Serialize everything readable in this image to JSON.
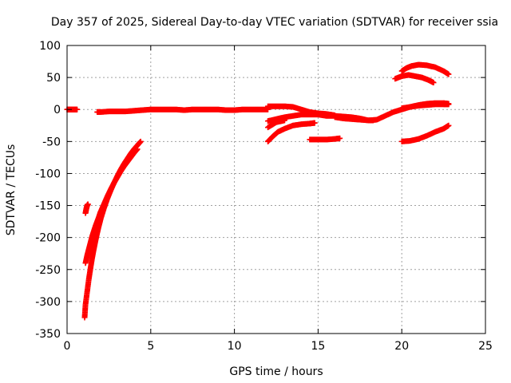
{
  "chart_data": {
    "type": "scatter",
    "title": "Day 357 of 2025, Sidereal Day-to-day VTEC variation (SDTVAR) for receiver ssia",
    "xlabel": "GPS time / hours",
    "ylabel": "SDTVAR / TECUs",
    "xlim": [
      0,
      25
    ],
    "ylim": [
      -350,
      100
    ],
    "xticks": [
      "0",
      "5",
      "10",
      "15",
      "20",
      "25"
    ],
    "yticks": [
      "100",
      "50",
      "0",
      "-50",
      "-100",
      "-150",
      "-200",
      "-250",
      "-300",
      "-350"
    ],
    "grid": true,
    "marker": "+",
    "color": "#ff0000",
    "series": [
      {
        "x": [
          0.0,
          0.2,
          0.4,
          0.6
        ],
        "y": [
          0,
          0,
          0,
          0
        ]
      },
      {
        "x": [
          1.8,
          2.0,
          2.5,
          3.0,
          3.5,
          4.0,
          4.5,
          5.0,
          5.5,
          6.0,
          6.5,
          7.0,
          7.5,
          8.0,
          8.5,
          9.0,
          9.5,
          10.0,
          10.5,
          11.0,
          11.5,
          12.0
        ],
        "y": [
          -4,
          -4,
          -3,
          -3,
          -3,
          -2,
          -1,
          0,
          0,
          0,
          0,
          -1,
          0,
          0,
          0,
          0,
          -1,
          -1,
          0,
          0,
          0,
          0
        ]
      },
      {
        "x": [
          1.1,
          1.15,
          1.2,
          1.25
        ],
        "y": [
          -162,
          -155,
          -150,
          -148
        ]
      },
      {
        "x": [
          1.05,
          1.1,
          1.2,
          1.3,
          1.4,
          1.5,
          1.6,
          1.7,
          1.8,
          1.9,
          2.0,
          2.2,
          2.4,
          2.6,
          2.8,
          3.0,
          3.2,
          3.4,
          3.6,
          3.8,
          4.0,
          4.2,
          4.4
        ],
        "y": [
          -325,
          -305,
          -285,
          -265,
          -248,
          -232,
          -218,
          -205,
          -193,
          -182,
          -172,
          -155,
          -140,
          -127,
          -115,
          -104,
          -94,
          -85,
          -77,
          -69,
          -62,
          -56,
          -50
        ]
      },
      {
        "x": [
          1.1,
          1.2,
          1.3,
          1.4,
          1.5,
          1.6,
          1.7,
          1.8,
          1.9,
          2.0,
          2.2,
          2.4,
          2.6,
          2.8,
          3.0,
          3.2,
          3.4,
          3.6,
          3.8,
          4.0,
          4.2
        ],
        "y": [
          -240,
          -228,
          -218,
          -208,
          -198,
          -190,
          -182,
          -175,
          -168,
          -160,
          -148,
          -136,
          -125,
          -115,
          -106,
          -97,
          -89,
          -82,
          -75,
          -68,
          -62
        ]
      },
      {
        "x": [
          12.0,
          12.5,
          13.0,
          13.5,
          14.0,
          14.5,
          15.0,
          15.5,
          16.0
        ],
        "y": [
          5,
          5,
          5,
          4,
          0,
          -4,
          -6,
          -7,
          -9
        ]
      },
      {
        "x": [
          12.0,
          12.5,
          13.0,
          13.5,
          14.0,
          14.5,
          15.0,
          15.5,
          16.0,
          16.5,
          17.0,
          17.5,
          18.0,
          18.5,
          19.0,
          19.5,
          20.0,
          20.5,
          21.0,
          21.5,
          22.0,
          22.5,
          22.8
        ],
        "y": [
          -18,
          -15,
          -12,
          -10,
          -8,
          -8,
          -8,
          -10,
          -10,
          -11,
          -12,
          -14,
          -17,
          -16,
          -10,
          -4,
          0,
          4,
          7,
          9,
          10,
          10,
          9
        ]
      },
      {
        "x": [
          12.0,
          12.3,
          12.6,
          13.0,
          13.5,
          14.0,
          14.5,
          14.8
        ],
        "y": [
          -50,
          -42,
          -35,
          -30,
          -25,
          -23,
          -22,
          -21
        ]
      },
      {
        "x": [
          12.0,
          12.5,
          13.0
        ],
        "y": [
          -28,
          -20,
          -17
        ]
      },
      {
        "x": [
          14.5,
          15.0,
          15.5,
          16.0,
          16.3
        ],
        "y": [
          -47,
          -47,
          -47,
          -46,
          -45
        ]
      },
      {
        "x": [
          16.0,
          16.5,
          17.0,
          17.5,
          18.0,
          18.3
        ],
        "y": [
          -12,
          -14,
          -15,
          -16,
          -17,
          -17
        ]
      },
      {
        "x": [
          19.6,
          20.0,
          20.4,
          20.8,
          21.2,
          21.6,
          21.9
        ],
        "y": [
          48,
          52,
          54,
          52,
          50,
          46,
          42
        ]
      },
      {
        "x": [
          20.0,
          20.3,
          20.6,
          21.0,
          21.5,
          22.0,
          22.5,
          22.8
        ],
        "y": [
          60,
          65,
          68,
          70,
          69,
          66,
          60,
          55
        ]
      },
      {
        "x": [
          20.0,
          20.5,
          21.0,
          21.5,
          22.0,
          22.5,
          22.8
        ],
        "y": [
          -50,
          -49,
          -46,
          -41,
          -35,
          -30,
          -25
        ]
      },
      {
        "x": [
          20.0,
          20.5,
          21.0,
          21.5,
          22.0,
          22.5,
          22.8
        ],
        "y": [
          2,
          4,
          6,
          7,
          8,
          8,
          8
        ]
      }
    ]
  }
}
